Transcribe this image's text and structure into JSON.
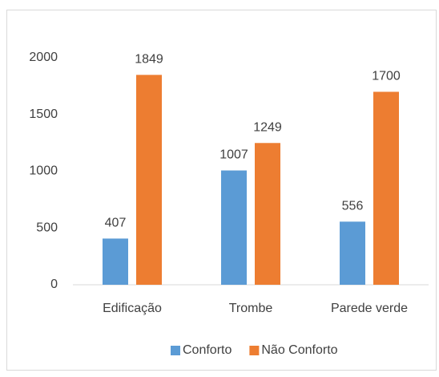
{
  "chart_data": {
    "type": "bar",
    "categories": [
      "Edificação",
      "Trombe",
      "Parede verde"
    ],
    "series": [
      {
        "name": "Conforto",
        "color": "#5b9bd5",
        "values": [
          407,
          1007,
          556
        ]
      },
      {
        "name": "Não Conforto",
        "color": "#ed7d31",
        "values": [
          1849,
          1249,
          1700
        ]
      }
    ],
    "ylim": [
      0,
      2000
    ],
    "yticks": [
      0,
      500,
      1000,
      1500,
      2000
    ],
    "grid": false,
    "legend": "bottom"
  }
}
